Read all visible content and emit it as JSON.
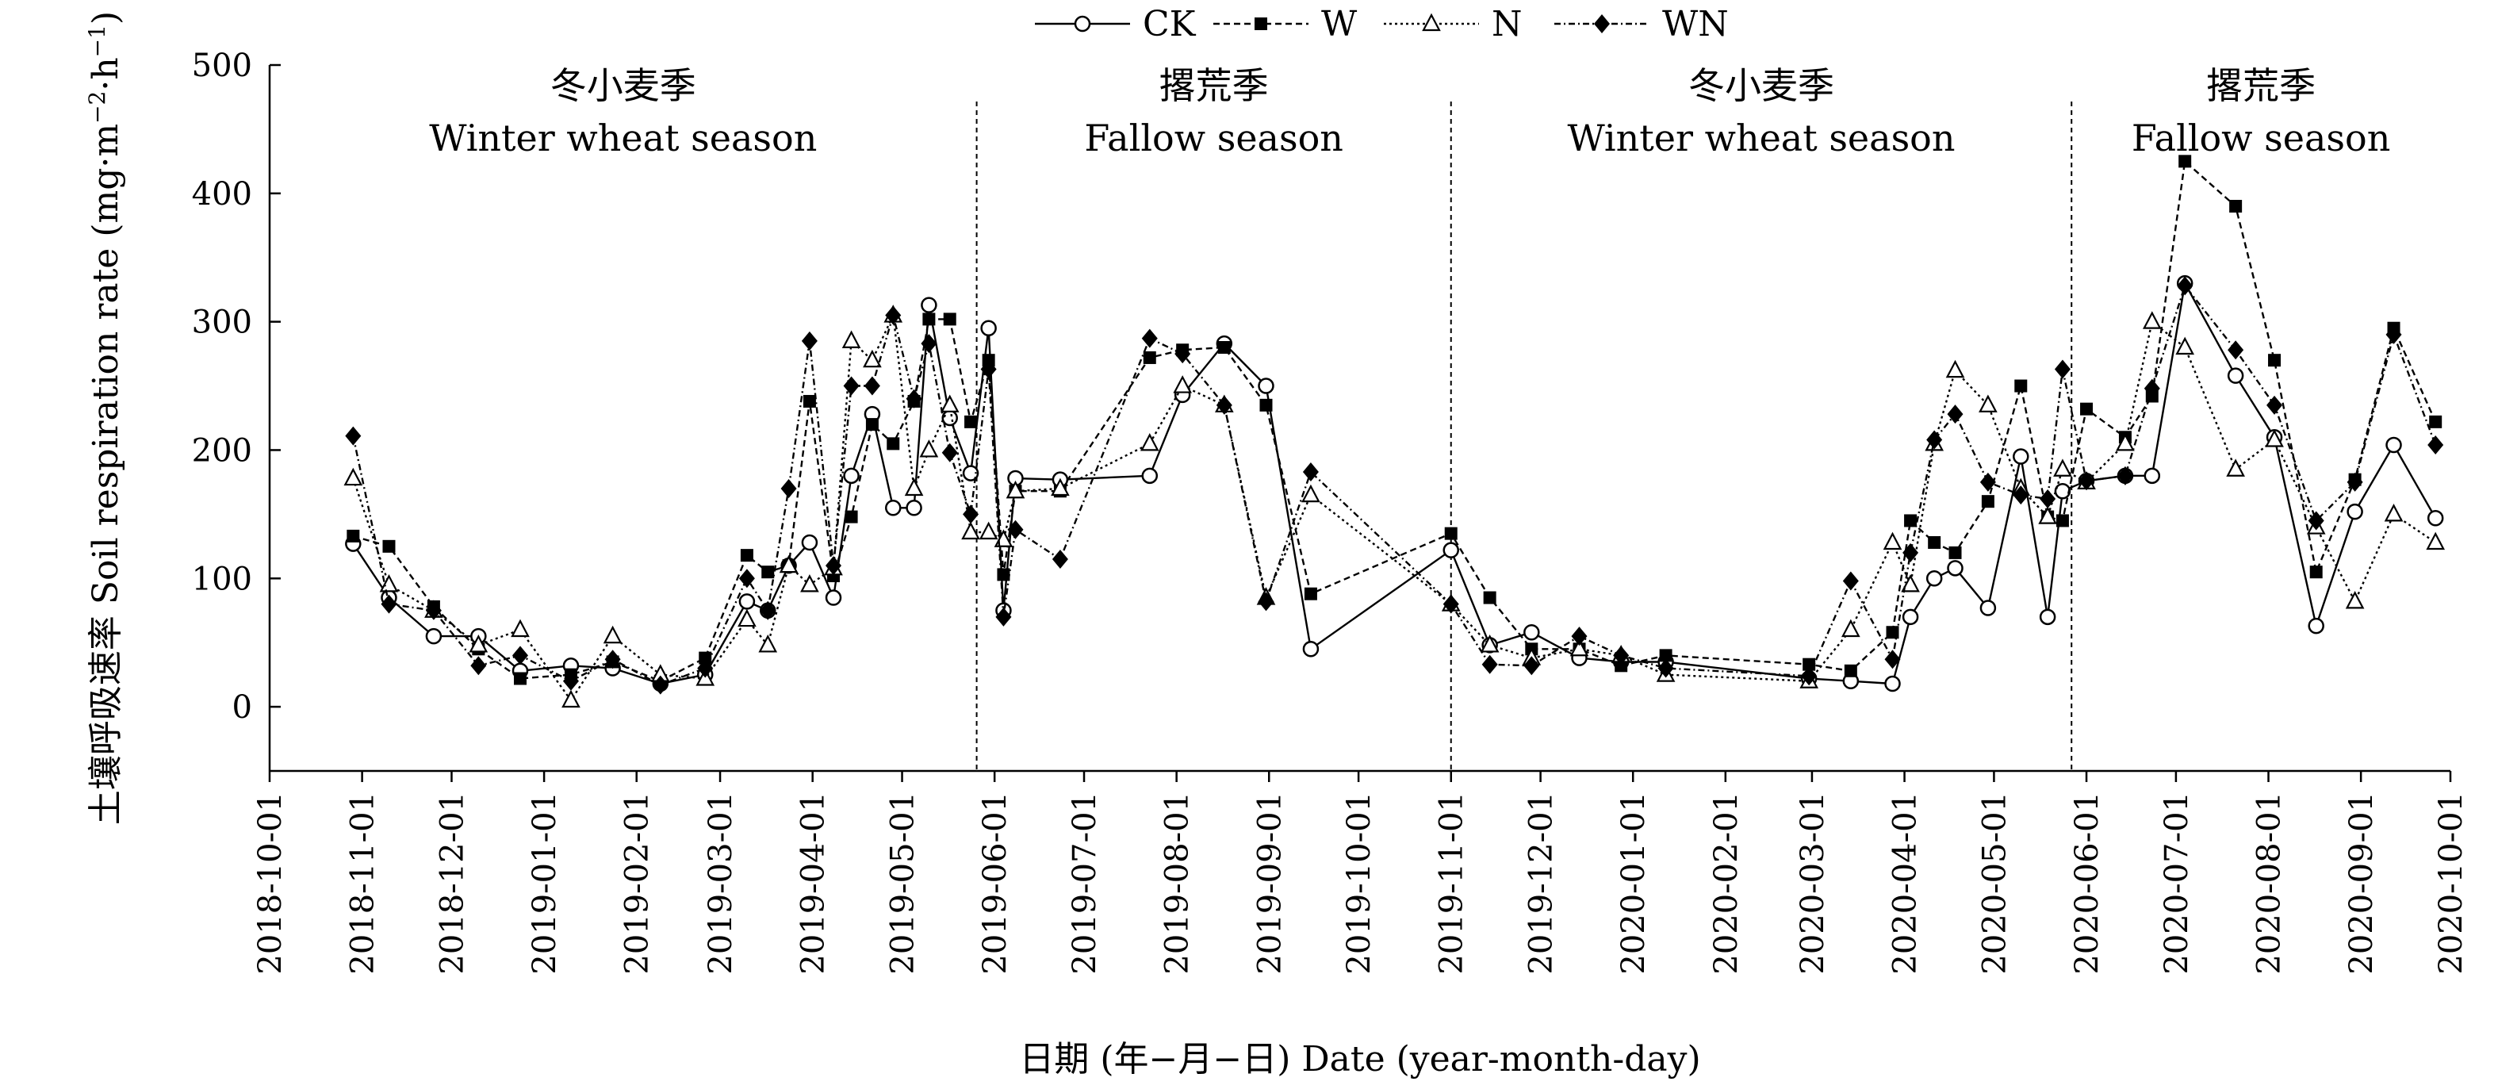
{
  "chart_data": {
    "type": "line",
    "ylabel_cn": "土壤呼吸速率",
    "ylabel_en": "Soil respiration rate (mg·m",
    "ylabel_sup1": "−2",
    "ylabel_mid": "·h",
    "ylabel_sup2": "−1",
    "ylabel_end": ")",
    "xlabel": "日期 (年−月−日) Date (year-month-day)",
    "ylim": [
      -50,
      500
    ],
    "yticks": [
      0,
      100,
      200,
      300,
      400,
      500
    ],
    "xlim": [
      "2018-10-01",
      "2020-10-01"
    ],
    "xticks": [
      "2018-10-01",
      "2018-11-01",
      "2018-12-01",
      "2019-01-01",
      "2019-02-01",
      "2019-03-01",
      "2019-04-01",
      "2019-05-01",
      "2019-06-01",
      "2019-07-01",
      "2019-08-01",
      "2019-09-01",
      "2019-10-01",
      "2019-11-01",
      "2019-12-01",
      "2020-01-01",
      "2020-02-01",
      "2020-03-01",
      "2020-04-01",
      "2020-05-01",
      "2020-06-01",
      "2020-07-01",
      "2020-08-01",
      "2020-09-01",
      "2020-10-01"
    ],
    "season_dividers": [
      "2019-05-26",
      "2019-11-01",
      "2020-05-27"
    ],
    "seasons": [
      {
        "cn": "冬小麦季",
        "en": "Winter wheat season",
        "from": "2018-10-01",
        "to": "2019-05-26"
      },
      {
        "cn": "撂荒季",
        "en": "Fallow season",
        "from": "2019-05-26",
        "to": "2019-11-01"
      },
      {
        "cn": "冬小麦季",
        "en": "Winter wheat season",
        "from": "2019-11-01",
        "to": "2020-05-27"
      },
      {
        "cn": "撂荒季",
        "en": "Fallow season",
        "from": "2020-05-27",
        "to": "2020-10-01"
      }
    ],
    "legend_position": "top-center",
    "grid": false,
    "series": [
      {
        "name": "CK",
        "marker": "circle-open",
        "dash": "",
        "x": [
          "2018-10-29",
          "2018-11-10",
          "2018-11-25",
          "2018-12-10",
          "2018-12-24",
          "2019-01-10",
          "2019-01-24",
          "2019-02-09",
          "2019-02-24",
          "2019-03-10",
          "2019-03-17",
          "2019-03-24",
          "2019-03-31",
          "2019-04-08",
          "2019-04-14",
          "2019-04-21",
          "2019-04-28",
          "2019-05-05",
          "2019-05-10",
          "2019-05-17",
          "2019-05-24",
          "2019-05-30",
          "2019-06-04",
          "2019-06-08",
          "2019-06-23",
          "2019-07-23",
          "2019-08-03",
          "2019-08-17",
          "2019-08-31",
          "2019-09-15",
          "2019-11-01",
          "2019-11-14",
          "2019-11-28",
          "2019-12-14",
          "2019-12-28",
          "2020-01-12",
          "2020-02-29",
          "2020-03-14",
          "2020-03-28",
          "2020-04-03",
          "2020-04-11",
          "2020-04-18",
          "2020-04-29",
          "2020-05-10",
          "2020-05-19",
          "2020-05-24",
          "2020-06-01",
          "2020-06-14",
          "2020-06-23",
          "2020-07-04",
          "2020-07-21",
          "2020-08-03",
          "2020-08-17",
          "2020-08-30",
          "2020-09-12",
          "2020-09-26"
        ],
        "values": [
          127,
          85,
          55,
          55,
          28,
          32,
          30,
          18,
          25,
          82,
          75,
          110,
          128,
          85,
          180,
          228,
          155,
          155,
          313,
          225,
          182,
          295,
          75,
          178,
          177,
          180,
          243,
          283,
          250,
          45,
          122,
          48,
          58,
          38,
          35,
          35,
          22,
          20,
          18,
          70,
          100,
          108,
          77,
          195,
          70,
          168,
          176,
          180,
          180,
          330,
          258,
          210,
          63,
          152,
          204,
          147
        ]
      },
      {
        "name": "W",
        "marker": "square-filled",
        "dash": "8 5",
        "x": [
          "2018-10-29",
          "2018-11-10",
          "2018-11-25",
          "2018-12-10",
          "2018-12-24",
          "2019-01-10",
          "2019-01-24",
          "2019-02-09",
          "2019-02-24",
          "2019-03-10",
          "2019-03-17",
          "2019-03-24",
          "2019-03-31",
          "2019-04-08",
          "2019-04-14",
          "2019-04-21",
          "2019-04-28",
          "2019-05-05",
          "2019-05-10",
          "2019-05-17",
          "2019-05-24",
          "2019-05-30",
          "2019-06-04",
          "2019-06-08",
          "2019-06-23",
          "2019-07-23",
          "2019-08-03",
          "2019-08-17",
          "2019-08-31",
          "2019-09-15",
          "2019-11-01",
          "2019-11-14",
          "2019-11-28",
          "2019-12-14",
          "2019-12-28",
          "2020-01-12",
          "2020-02-29",
          "2020-03-14",
          "2020-03-28",
          "2020-04-03",
          "2020-04-11",
          "2020-04-18",
          "2020-04-29",
          "2020-05-10",
          "2020-05-19",
          "2020-05-24",
          "2020-06-01",
          "2020-06-14",
          "2020-06-23",
          "2020-07-04",
          "2020-07-21",
          "2020-08-03",
          "2020-08-17",
          "2020-08-30",
          "2020-09-12",
          "2020-09-26"
        ],
        "values": [
          133,
          125,
          78,
          45,
          22,
          25,
          35,
          20,
          38,
          118,
          105,
          110,
          238,
          102,
          148,
          220,
          205,
          238,
          302,
          302,
          222,
          270,
          103,
          168,
          168,
          272,
          278,
          280,
          235,
          88,
          135,
          85,
          45,
          45,
          32,
          40,
          33,
          28,
          58,
          145,
          128,
          120,
          160,
          250,
          148,
          145,
          232,
          210,
          242,
          425,
          390,
          270,
          105,
          177,
          295,
          222
        ]
      },
      {
        "name": "N",
        "marker": "triangle-open",
        "dash": "3 4",
        "x": [
          "2018-10-29",
          "2018-11-10",
          "2018-11-25",
          "2018-12-10",
          "2018-12-24",
          "2019-01-10",
          "2019-01-24",
          "2019-02-09",
          "2019-02-24",
          "2019-03-10",
          "2019-03-17",
          "2019-03-24",
          "2019-03-31",
          "2019-04-08",
          "2019-04-14",
          "2019-04-21",
          "2019-04-28",
          "2019-05-05",
          "2019-05-10",
          "2019-05-17",
          "2019-05-24",
          "2019-05-30",
          "2019-06-04",
          "2019-06-08",
          "2019-06-23",
          "2019-07-23",
          "2019-08-03",
          "2019-08-17",
          "2019-08-31",
          "2019-09-15",
          "2019-11-01",
          "2019-11-14",
          "2019-11-28",
          "2019-12-14",
          "2019-12-28",
          "2020-01-12",
          "2020-02-29",
          "2020-03-14",
          "2020-03-28",
          "2020-04-03",
          "2020-04-11",
          "2020-04-18",
          "2020-04-29",
          "2020-05-10",
          "2020-05-19",
          "2020-05-24",
          "2020-06-01",
          "2020-06-14",
          "2020-06-23",
          "2020-07-04",
          "2020-07-21",
          "2020-08-03",
          "2020-08-17",
          "2020-08-30",
          "2020-09-12",
          "2020-09-26"
        ],
        "values": [
          178,
          95,
          75,
          48,
          60,
          5,
          55,
          25,
          22,
          68,
          48,
          110,
          95,
          108,
          285,
          270,
          305,
          170,
          200,
          235,
          136,
          136,
          130,
          168,
          170,
          205,
          250,
          235,
          85,
          165,
          80,
          48,
          38,
          45,
          40,
          25,
          20,
          60,
          128,
          95,
          205,
          262,
          235,
          170,
          148,
          185,
          175,
          205,
          300,
          280,
          185,
          208,
          140,
          82,
          150,
          128
        ]
      },
      {
        "name": "WN",
        "marker": "diamond-filled",
        "dash": "8 4 2 4",
        "x": [
          "2018-10-29",
          "2018-11-10",
          "2018-11-25",
          "2018-12-10",
          "2018-12-24",
          "2019-01-10",
          "2019-01-24",
          "2019-02-09",
          "2019-02-24",
          "2019-03-10",
          "2019-03-17",
          "2019-03-24",
          "2019-03-31",
          "2019-04-08",
          "2019-04-14",
          "2019-04-21",
          "2019-04-28",
          "2019-05-05",
          "2019-05-10",
          "2019-05-17",
          "2019-05-24",
          "2019-05-30",
          "2019-06-04",
          "2019-06-08",
          "2019-06-23",
          "2019-07-23",
          "2019-08-03",
          "2019-08-17",
          "2019-08-31",
          "2019-09-15",
          "2019-11-01",
          "2019-11-14",
          "2019-11-28",
          "2019-12-14",
          "2019-12-28",
          "2020-01-12",
          "2020-02-29",
          "2020-03-14",
          "2020-03-28",
          "2020-04-03",
          "2020-04-11",
          "2020-04-18",
          "2020-04-29",
          "2020-05-10",
          "2020-05-19",
          "2020-05-24",
          "2020-06-01",
          "2020-06-14",
          "2020-06-23",
          "2020-07-04",
          "2020-07-21",
          "2020-08-03",
          "2020-08-17",
          "2020-08-30",
          "2020-09-12",
          "2020-09-26"
        ],
        "values": [
          211,
          80,
          75,
          32,
          40,
          20,
          37,
          17,
          30,
          100,
          75,
          170,
          285,
          110,
          250,
          250,
          305,
          240,
          283,
          198,
          150,
          263,
          70,
          138,
          115,
          287,
          275,
          235,
          82,
          183,
          80,
          33,
          32,
          55,
          40,
          30,
          24,
          98,
          37,
          120,
          208,
          228,
          175,
          165,
          162,
          263,
          176,
          180,
          248,
          328,
          278,
          235,
          145,
          175,
          290,
          204
        ]
      }
    ]
  }
}
